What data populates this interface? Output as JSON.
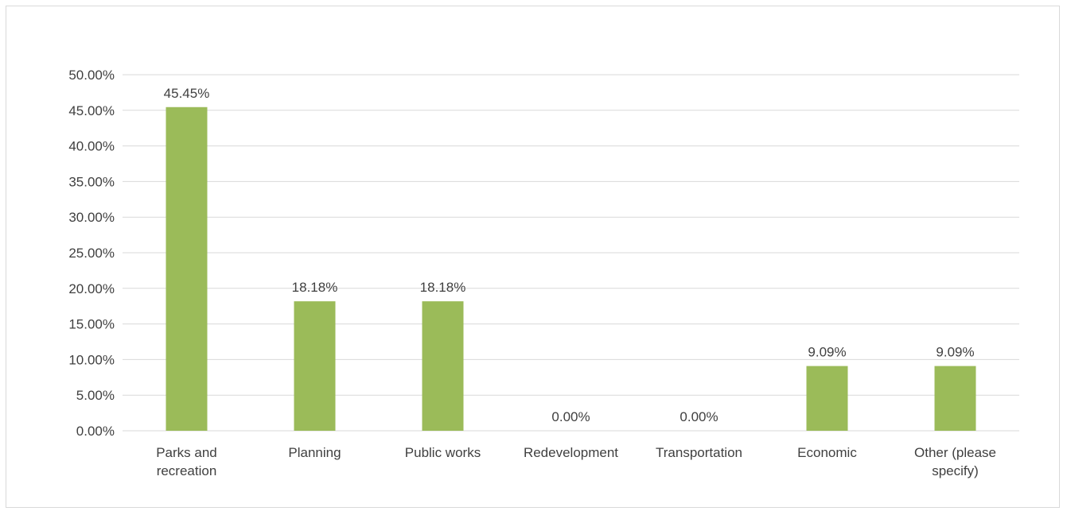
{
  "chart_data": {
    "type": "bar",
    "categories": [
      "Parks and recreation",
      "Planning",
      "Public works",
      "Redevelopment",
      "Transportation",
      "Economic",
      "Other (please specify)"
    ],
    "category_lines": [
      [
        "Parks and",
        "recreation"
      ],
      [
        "Planning"
      ],
      [
        "Public works"
      ],
      [
        "Redevelopment"
      ],
      [
        "Transportation"
      ],
      [
        "Economic"
      ],
      [
        "Other (please",
        "specify)"
      ]
    ],
    "values": [
      45.45,
      18.18,
      18.18,
      0.0,
      0.0,
      9.09,
      9.09
    ],
    "data_labels": [
      "45.45%",
      "18.18%",
      "18.18%",
      "0.00%",
      "0.00%",
      "9.09%",
      "9.09%"
    ],
    "ylim": [
      0,
      50
    ],
    "yticks": [
      0,
      5,
      10,
      15,
      20,
      25,
      30,
      35,
      40,
      45,
      50
    ],
    "ytick_labels": [
      "0.00%",
      "5.00%",
      "10.00%",
      "15.00%",
      "20.00%",
      "25.00%",
      "30.00%",
      "35.00%",
      "40.00%",
      "45.00%",
      "50.00%"
    ],
    "grid": true,
    "legend": "none",
    "bar_color": "#9bbb59",
    "grid_color": "#d9d9d9",
    "text_color": "#404040"
  }
}
